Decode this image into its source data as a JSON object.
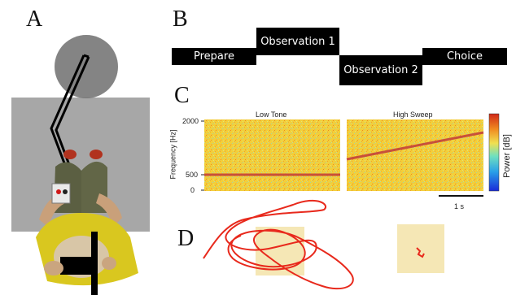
{
  "panels": {
    "a": "A",
    "b": "B",
    "c": "C",
    "d": "D"
  },
  "timeline": {
    "prepare": "Prepare",
    "observation1": "Observation 1",
    "observation2": "Observation 2",
    "choice": "Choice"
  },
  "spectrogram": {
    "left_title": "Low Tone",
    "right_title": "High Sweep",
    "y_axis_label": "Frequency [Hz]",
    "y_ticks": [
      "2000",
      "500",
      "0"
    ],
    "colorbar_label": "Power [dB]",
    "scale_bar_label": "1 s",
    "colors": {
      "background": "#f2cf3a",
      "line": "#c8503a",
      "colorbar": [
        "#1a2bd8",
        "#2aa0e8",
        "#6fe0c0",
        "#f0e050",
        "#f08a20",
        "#d02818"
      ]
    }
  },
  "trajectory": {
    "colors": {
      "path": "#e8291c",
      "patch": "#f3e3a8"
    }
  },
  "figure_icons": [
    "overhead-person-icon",
    "pointer-arm-icon",
    "handheld-device-icon",
    "head-circle-icon"
  ]
}
